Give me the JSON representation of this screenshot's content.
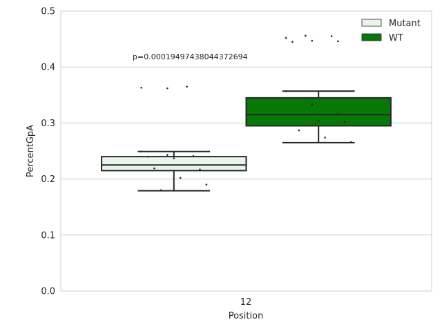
{
  "chart_data": {
    "type": "box",
    "title": "",
    "xlabel": "Position",
    "ylabel": "PercentGpA",
    "categories": [
      "12"
    ],
    "ylim": [
      0.0,
      0.5
    ],
    "yticks": [
      0.0,
      0.1,
      0.2,
      0.3,
      0.4,
      0.5
    ],
    "ytick_labels": [
      "0.0",
      "0.1",
      "0.2",
      "0.3",
      "0.4",
      "0.5"
    ],
    "grid": true,
    "legend_position": "top-right",
    "annotation": "p=0.00019497438044372694",
    "series": [
      {
        "name": "Mutant",
        "color": "#eaf5ea",
        "whisker_low": 0.179,
        "q1": 0.215,
        "median": 0.225,
        "q3": 0.24,
        "whisker_high": 0.249,
        "points": [
          0.249,
          0.243,
          0.241,
          0.24,
          0.237,
          0.217,
          0.219,
          0.202,
          0.19,
          0.18
        ],
        "outliers": [
          0.365,
          0.363,
          0.362
        ]
      },
      {
        "name": "WT",
        "color": "#077807",
        "whisker_low": 0.265,
        "q1": 0.295,
        "median": 0.315,
        "q3": 0.345,
        "whisker_high": 0.357,
        "points": [
          0.357,
          0.333,
          0.316,
          0.315,
          0.304,
          0.302,
          0.287,
          0.274,
          0.266
        ],
        "outliers": [
          0.456,
          0.455,
          0.452,
          0.447,
          0.446,
          0.445
        ]
      }
    ]
  }
}
